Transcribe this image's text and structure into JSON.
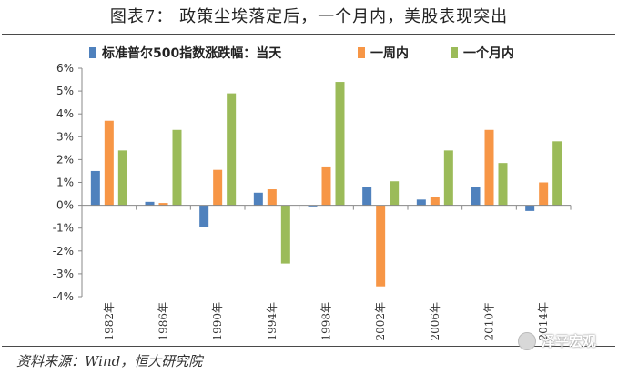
{
  "header": {
    "title": "图表7：  政策尘埃落定后，一个月内，美股表现突出"
  },
  "footer": {
    "source": "资料来源：Wind，恒大研究院"
  },
  "watermark": {
    "text": "泽平宏观",
    "icon": "wechat-icon"
  },
  "chart_data": {
    "type": "bar",
    "title": "",
    "xlabel": "",
    "ylabel": "",
    "ylim": [
      -4,
      6
    ],
    "yticks": [
      -4,
      -3,
      -2,
      -1,
      0,
      1,
      2,
      3,
      4,
      5,
      6
    ],
    "ytick_labels": [
      "-4%",
      "-3%",
      "-2%",
      "-1%",
      "0%",
      "1%",
      "2%",
      "3%",
      "4%",
      "5%",
      "6%"
    ],
    "grid": false,
    "legend_position": "top",
    "categories": [
      "1982年",
      "1986年",
      "1990年",
      "1994年",
      "1998年",
      "2002年",
      "2006年",
      "2010年",
      "2014年"
    ],
    "series": [
      {
        "name": "标准普尔500指数涨跌幅：当天",
        "color": "#4f81bd",
        "values": [
          1.5,
          0.15,
          -0.95,
          0.55,
          -0.05,
          0.8,
          0.25,
          0.8,
          -0.25
        ]
      },
      {
        "name": "一周内",
        "color": "#f79646",
        "values": [
          3.7,
          0.1,
          1.55,
          0.7,
          1.7,
          -3.55,
          0.35,
          3.3,
          1.0
        ]
      },
      {
        "name": "一个月内",
        "color": "#9bbb59",
        "values": [
          2.4,
          3.3,
          4.9,
          -2.55,
          5.4,
          1.05,
          2.4,
          1.85,
          2.8
        ]
      }
    ]
  }
}
